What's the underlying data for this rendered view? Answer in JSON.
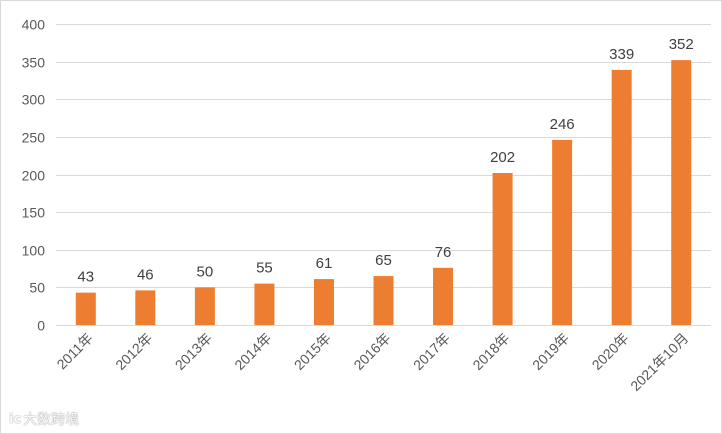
{
  "chart_data": {
    "type": "bar",
    "categories": [
      "2011年",
      "2012年",
      "2013年",
      "2014年",
      "2015年",
      "2016年",
      "2017年",
      "2018年",
      "2019年",
      "2020年",
      "2021年10月"
    ],
    "values": [
      43,
      46,
      50,
      55,
      61,
      65,
      76,
      202,
      246,
      339,
      352
    ],
    "data_labels": [
      "43",
      "46",
      "50",
      "55",
      "61",
      "65",
      "76",
      "202",
      "246",
      "339",
      "352"
    ],
    "y_ticks": [
      "0",
      "50",
      "100",
      "150",
      "200",
      "250",
      "300",
      "350",
      "400"
    ],
    "ylim": [
      0,
      400
    ],
    "grid": true,
    "legend": "none",
    "bar_color": "#ED7D31"
  },
  "watermark": {
    "logo": "ic",
    "text": "大数跨境"
  }
}
